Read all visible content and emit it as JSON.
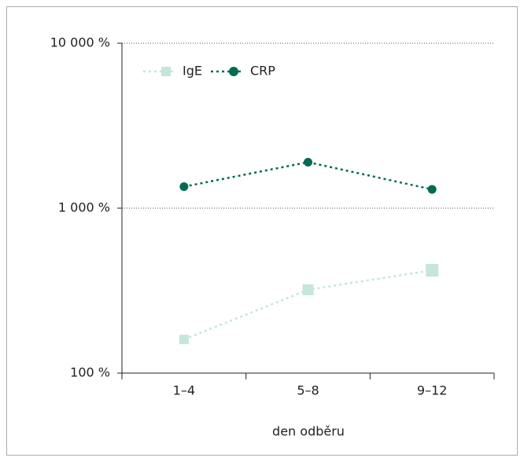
{
  "chart_data": {
    "type": "line",
    "categories": [
      "1–4",
      "5–8",
      "9–12"
    ],
    "x_label": "den odběru",
    "series": [
      {
        "name": "IgE",
        "color": "#c5e6da",
        "marker": "square",
        "values": [
          160,
          320,
          420
        ]
      },
      {
        "name": "CRP",
        "color": "#006b50",
        "marker": "circle",
        "values": [
          1350,
          1900,
          1300
        ]
      }
    ],
    "ylim": [
      100,
      10000
    ],
    "yticks": [
      {
        "value": 100,
        "label": "100 %"
      },
      {
        "value": 1000,
        "label": "1 000 %"
      },
      {
        "value": 10000,
        "label": "10 000 %"
      }
    ],
    "log_scale": true,
    "grid": true,
    "legend": "top-left"
  }
}
